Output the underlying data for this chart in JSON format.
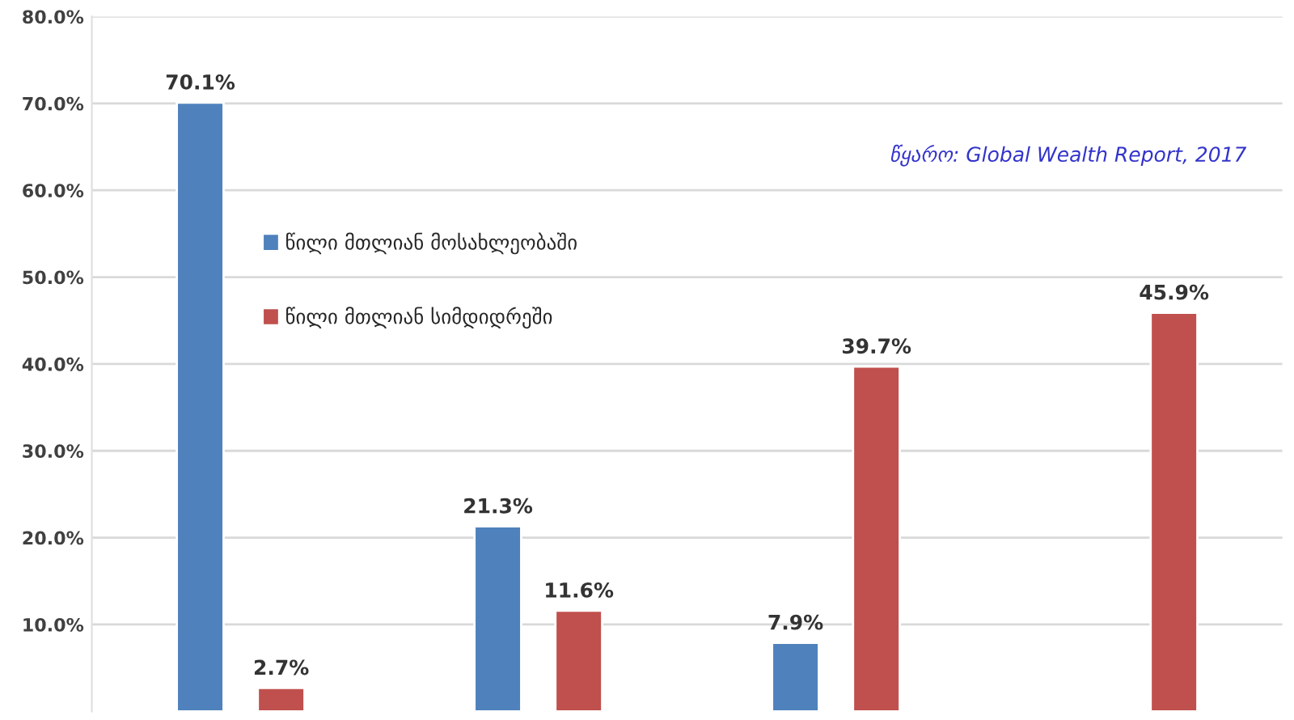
{
  "chart_data": {
    "type": "bar",
    "categories": [
      null,
      null,
      null,
      null
    ],
    "series": [
      {
        "name": "წილი მთლიან მოსახლეობაში",
        "color": "#4f81bd",
        "values": [
          70.1,
          21.3,
          7.9,
          null
        ],
        "value_labels": [
          "70.1%",
          "21.3%",
          "7.9%",
          null
        ]
      },
      {
        "name": "წილი მთლიან სიმდიდრეში",
        "color": "#c0504d",
        "values": [
          2.7,
          11.6,
          39.7,
          45.9
        ],
        "value_labels": [
          "2.7%",
          "11.6%",
          "39.7%",
          "45.9%"
        ]
      }
    ],
    "ylim": [
      0,
      80
    ],
    "yticks": [
      {
        "value": 10,
        "label": "10.0%"
      },
      {
        "value": 20,
        "label": "20.0%"
      },
      {
        "value": 30,
        "label": "30.0%"
      },
      {
        "value": 40,
        "label": "40.0%"
      },
      {
        "value": 50,
        "label": "50.0%"
      },
      {
        "value": 60,
        "label": "60.0%"
      },
      {
        "value": 70,
        "label": "70.0%"
      },
      {
        "value": 80,
        "label": "80.0%"
      }
    ],
    "grid": "y",
    "legend": "center left",
    "tick_labels": "y",
    "annotations": [
      "წყარო: Global Wealth Report, 2017"
    ]
  }
}
